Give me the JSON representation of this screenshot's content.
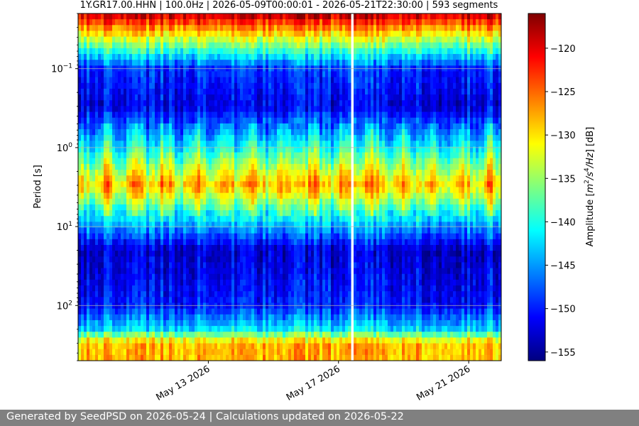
{
  "footer": {
    "text": "Generated by SeedPSD on 2026-05-24 | Calculations updated on 2026-05-22"
  },
  "chart_data": {
    "type": "heatmap",
    "title": "1Y.GR17.00.HHN | 100.0Hz | 2026-05-09T00:00:01 - 2026-05-21T22:30:00 | 593 segments",
    "xlabel": "",
    "ylabel": "Period [s]",
    "colorbar_label": "Amplitude [m²/s⁴/Hz] [dB]",
    "colorbar_label_parts": {
      "pre": "Amplitude [",
      "m": "m",
      "exp2": "2",
      "s": "/s",
      "exp4": "4",
      "hz": "/Hz",
      "post": "] [dB]"
    },
    "colormap": "jet",
    "x_range": [
      "2026-05-09T00:00:00",
      "2026-05-22T00:00:00"
    ],
    "x_ticks": [
      "May 13 2026",
      "May 17 2026",
      "May 21 2026"
    ],
    "x_tick_dates": [
      "2026-05-13",
      "2026-05-17",
      "2026-05-21"
    ],
    "y_scale": "log",
    "y_inverted": true,
    "y_range": [
      0.02,
      500
    ],
    "y_ticks": [
      0.1,
      1,
      10,
      100
    ],
    "y_tick_labels": [
      {
        "base": "10",
        "exp": "−1"
      },
      {
        "base": "10",
        "exp": "0"
      },
      {
        "base": "10",
        "exp": "1"
      },
      {
        "base": "10",
        "exp": "2"
      }
    ],
    "grid": true,
    "color_range": [
      -156,
      -116
    ],
    "colorbar_ticks": [
      -120,
      -125,
      -130,
      -135,
      -140,
      -145,
      -150,
      -155
    ],
    "colorbar_tick_labels": [
      "−120",
      "−125",
      "−130",
      "−135",
      "−140",
      "−145",
      "−150",
      "−155"
    ],
    "data_gaps": [
      {
        "start": "2026-05-17T08:00:00",
        "end": "2026-05-17T11:30:00"
      }
    ],
    "period_profile": [
      {
        "period": 0.02,
        "amplitude_db": -118
      },
      {
        "period": 0.03,
        "amplitude_db": -126
      },
      {
        "period": 0.05,
        "amplitude_db": -136
      },
      {
        "period": 0.1,
        "amplitude_db": -149
      },
      {
        "period": 0.3,
        "amplitude_db": -152
      },
      {
        "period": 1,
        "amplitude_db": -140
      },
      {
        "period": 3,
        "amplitude_db": -128
      },
      {
        "period": 7,
        "amplitude_db": -140
      },
      {
        "period": 20,
        "amplitude_db": -153
      },
      {
        "period": 100,
        "amplitude_db": -150
      },
      {
        "period": 200,
        "amplitude_db": -142
      },
      {
        "period": 300,
        "amplitude_db": -128
      }
    ]
  }
}
